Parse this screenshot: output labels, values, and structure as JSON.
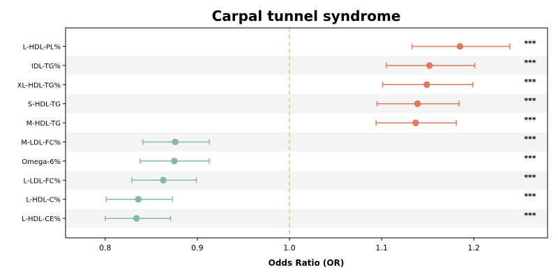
{
  "chart_data": {
    "type": "forest",
    "title": "Carpal tunnel syndrome",
    "xlabel": "Odds Ratio (OR)",
    "xlim": [
      0.757,
      1.28
    ],
    "xticks": [
      0.8,
      0.9,
      1.0,
      1.1,
      1.2
    ],
    "xtick_labels": [
      "0.8",
      "0.9",
      "1.0",
      "1.1",
      "1.2"
    ],
    "reference_line": 1.0,
    "colors": {
      "positive": "#de7a60",
      "negative": "#86b99e",
      "reference": "#f5c27a",
      "band": "#f4f4f4"
    },
    "rows": [
      {
        "label": "L-HDL-PL%",
        "or": 1.185,
        "lower": 1.133,
        "upper": 1.239,
        "sig": "***"
      },
      {
        "label": "IDL-TG%",
        "or": 1.152,
        "lower": 1.105,
        "upper": 1.201,
        "sig": "***"
      },
      {
        "label": "XL-HDL-TG%",
        "or": 1.149,
        "lower": 1.101,
        "upper": 1.199,
        "sig": "***"
      },
      {
        "label": "S-HDL-TG",
        "or": 1.139,
        "lower": 1.095,
        "upper": 1.184,
        "sig": "***"
      },
      {
        "label": "M-HDL-TG",
        "or": 1.137,
        "lower": 1.094,
        "upper": 1.181,
        "sig": "***"
      },
      {
        "label": "M-LDL-FC%",
        "or": 0.876,
        "lower": 0.841,
        "upper": 0.913,
        "sig": "***"
      },
      {
        "label": "Omega-6%",
        "or": 0.875,
        "lower": 0.838,
        "upper": 0.913,
        "sig": "***"
      },
      {
        "label": "L-LDL-FC%",
        "or": 0.863,
        "lower": 0.829,
        "upper": 0.899,
        "sig": "***"
      },
      {
        "label": "L-HDL-C%",
        "or": 0.836,
        "lower": 0.801,
        "upper": 0.873,
        "sig": "***"
      },
      {
        "label": "L-HDL-CE%",
        "or": 0.834,
        "lower": 0.8,
        "upper": 0.871,
        "sig": "***"
      }
    ]
  }
}
